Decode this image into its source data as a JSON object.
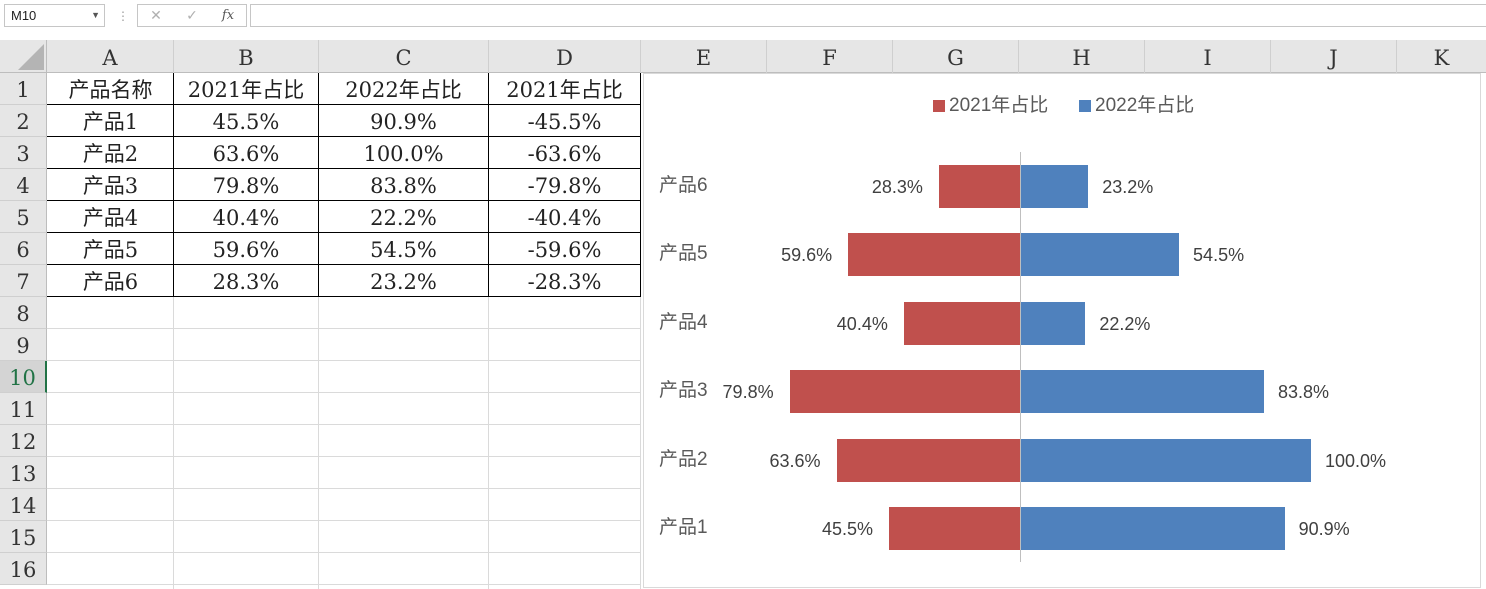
{
  "formula_bar": {
    "name_box": "M10",
    "cancel_icon": "close-x-icon",
    "enter_icon": "checkmark-icon",
    "function_label": "fx",
    "formula": ""
  },
  "columns": [
    "A",
    "B",
    "C",
    "D",
    "E",
    "F",
    "G",
    "H",
    "I",
    "J",
    "K"
  ],
  "rows": [
    "1",
    "2",
    "3",
    "4",
    "5",
    "6",
    "7",
    "8",
    "9",
    "10",
    "11",
    "12",
    "13",
    "14",
    "15",
    "16"
  ],
  "active_cell": "M10",
  "table": {
    "headers": [
      "产品名称",
      "2021年占比",
      "2022年占比",
      "2021年占比"
    ],
    "rows": [
      [
        "产品1",
        "45.5%",
        "90.9%",
        "-45.5%"
      ],
      [
        "产品2",
        "63.6%",
        "100.0%",
        "-63.6%"
      ],
      [
        "产品3",
        "79.8%",
        "83.8%",
        "-79.8%"
      ],
      [
        "产品4",
        "40.4%",
        "22.2%",
        "-40.4%"
      ],
      [
        "产品5",
        "59.6%",
        "54.5%",
        "-59.6%"
      ],
      [
        "产品6",
        "28.3%",
        "23.2%",
        "-28.3%"
      ]
    ]
  },
  "chart_data": {
    "type": "bar",
    "orientation": "horizontal",
    "layout": "diverging",
    "categories": [
      "产品6",
      "产品5",
      "产品4",
      "产品3",
      "产品2",
      "产品1"
    ],
    "series": [
      {
        "name": "2021年占比",
        "color": "#C0504D",
        "values": [
          28.3,
          59.6,
          40.4,
          79.8,
          63.6,
          45.5
        ],
        "labels": [
          "28.3%",
          "59.6%",
          "40.4%",
          "79.8%",
          "63.6%",
          "45.5%"
        ]
      },
      {
        "name": "2022年占比",
        "color": "#4F81BD",
        "values": [
          23.2,
          54.5,
          22.2,
          83.8,
          100.0,
          90.9
        ],
        "labels": [
          "23.2%",
          "54.5%",
          "22.2%",
          "83.8%",
          "100.0%",
          "90.9%"
        ]
      }
    ],
    "xlim": [
      -100,
      100
    ],
    "legend": "top",
    "gridlines": false,
    "axis_line_color": "#BFBFBF"
  }
}
